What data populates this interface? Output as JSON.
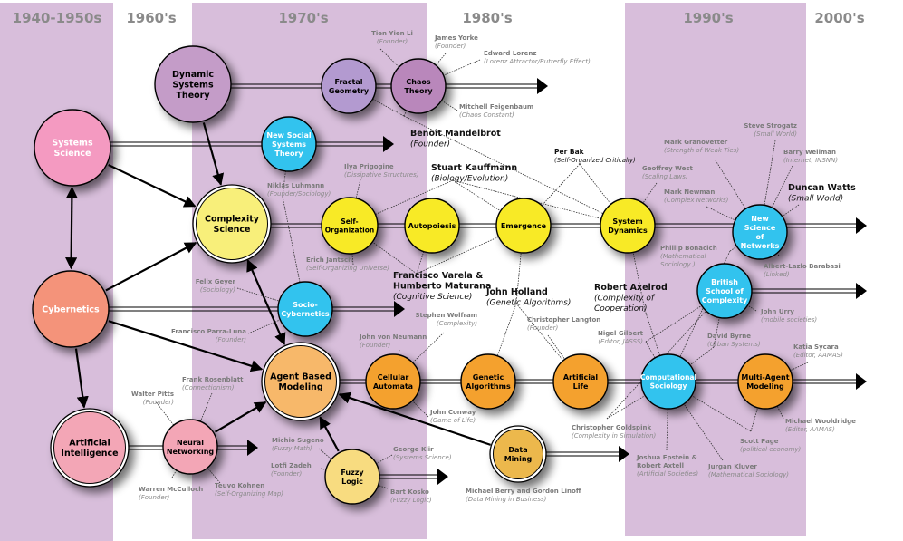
{
  "colors": {
    "band": "#d8bedb",
    "pink": "#f49ac1",
    "salmon": "#f4937a",
    "ai_pink": "#f3a6b6",
    "purple": "#c49cc8",
    "lavender": "#b39ad0",
    "chaos_purple": "#b987bb",
    "cyan": "#33c3ee",
    "light_yellow": "#f8ef7a",
    "yellow": "#f8ea26",
    "light_orange": "#f7b86a",
    "orange": "#f4a12e",
    "fuzzy_yellow": "#f8dc80",
    "gold": "#ecb84c"
  },
  "eras": [
    {
      "id": "e1",
      "label": "1940-1950s",
      "shaded": true
    },
    {
      "id": "e2",
      "label": "1960's",
      "shaded": false
    },
    {
      "id": "e3",
      "label": "1970's",
      "shaded": true
    },
    {
      "id": "e4",
      "label": "1980's",
      "shaded": false
    },
    {
      "id": "e5",
      "label": "1990's",
      "shaded": true
    },
    {
      "id": "e6",
      "label": "2000's",
      "shaded": false
    }
  ],
  "nodes": [
    {
      "id": "systems",
      "lines": [
        "Systems",
        "Science"
      ],
      "color": "pink",
      "text": "#fff"
    },
    {
      "id": "cyber",
      "lines": [
        "Cybernetics"
      ],
      "color": "salmon",
      "text": "#fff"
    },
    {
      "id": "ai",
      "lines": [
        "Artificial",
        "Intelligence"
      ],
      "color": "ai_pink",
      "text": "#000"
    },
    {
      "id": "dyn",
      "lines": [
        "Dynamic",
        "Systems",
        "Theory"
      ],
      "color": "purple",
      "text": "#000"
    },
    {
      "id": "fractal",
      "lines": [
        "Fractal",
        "Geometry"
      ],
      "color": "lavender",
      "text": "#000"
    },
    {
      "id": "chaos",
      "lines": [
        "Chaos",
        "Theory"
      ],
      "color": "chaos_purple",
      "text": "#000"
    },
    {
      "id": "nsst",
      "lines": [
        "New Social",
        "Systems",
        "Theory"
      ],
      "color": "cyan",
      "text": "#fff"
    },
    {
      "id": "complex",
      "lines": [
        "Complexity",
        "Science"
      ],
      "color": "light_yellow",
      "text": "#000"
    },
    {
      "id": "selforg",
      "lines": [
        "Self-",
        "Organization"
      ],
      "color": "yellow",
      "text": "#000"
    },
    {
      "id": "autop",
      "lines": [
        "Autopoiesis"
      ],
      "color": "yellow",
      "text": "#000"
    },
    {
      "id": "emerg",
      "lines": [
        "Emergence"
      ],
      "color": "yellow",
      "text": "#000"
    },
    {
      "id": "sysdyn",
      "lines": [
        "System",
        "Dynamics"
      ],
      "color": "yellow",
      "text": "#000"
    },
    {
      "id": "networks",
      "lines": [
        "New",
        "Science",
        "of",
        "Networks"
      ],
      "color": "cyan",
      "text": "#fff"
    },
    {
      "id": "sociocyb",
      "lines": [
        "Socio-",
        "Cybernetics"
      ],
      "color": "cyan",
      "text": "#fff"
    },
    {
      "id": "british",
      "lines": [
        "British",
        "School of",
        "Complexity"
      ],
      "color": "cyan",
      "text": "#fff"
    },
    {
      "id": "abm",
      "lines": [
        "Agent Based",
        "Modeling"
      ],
      "color": "light_orange",
      "text": "#000"
    },
    {
      "id": "ca",
      "lines": [
        "Cellular",
        "Automata"
      ],
      "color": "orange",
      "text": "#000"
    },
    {
      "id": "ga",
      "lines": [
        "Genetic",
        "Algorithms"
      ],
      "color": "orange",
      "text": "#000"
    },
    {
      "id": "alife",
      "lines": [
        "Artificial",
        "Life"
      ],
      "color": "orange",
      "text": "#000"
    },
    {
      "id": "compsoc",
      "lines": [
        "Computational",
        "Sociology"
      ],
      "color": "cyan",
      "text": "#fff"
    },
    {
      "id": "mam",
      "lines": [
        "Multi-Agent",
        "Modeling"
      ],
      "color": "orange",
      "text": "#000"
    },
    {
      "id": "neural",
      "lines": [
        "Neural",
        "Networking"
      ],
      "color": "ai_pink",
      "text": "#000"
    },
    {
      "id": "fuzzy",
      "lines": [
        "Fuzzy",
        "Logic"
      ],
      "color": "fuzzy_yellow",
      "text": "#000"
    },
    {
      "id": "datamining",
      "lines": [
        "Data",
        "Mining"
      ],
      "color": "gold",
      "text": "#000"
    }
  ],
  "influences": [
    {
      "from": "dyn",
      "to": "complex"
    },
    {
      "from": "systems",
      "to": "complex"
    },
    {
      "from": "cyber",
      "to": "complex"
    },
    {
      "from": "systems",
      "to": "cyber",
      "both": true
    },
    {
      "from": "cyber",
      "to": "ai"
    },
    {
      "from": "cyber",
      "to": "abm"
    },
    {
      "from": "complex",
      "to": "abm",
      "both": true
    },
    {
      "from": "neural",
      "to": "abm"
    },
    {
      "from": "fuzzy",
      "to": "abm"
    },
    {
      "from": "datamining",
      "to": "abm"
    }
  ],
  "people": [
    {
      "id": "p1",
      "name": "Tien Yien Li",
      "note": "(Founder)",
      "links": [
        "chaos"
      ]
    },
    {
      "id": "p2",
      "name": "James Yorke",
      "note": "(Founder)",
      "links": [
        "chaos"
      ]
    },
    {
      "id": "p3",
      "name": "Edward Lorenz",
      "note": "(Lorenz Attractor/Butterfly Effect)",
      "links": [
        "chaos"
      ]
    },
    {
      "id": "p4",
      "name": "Mitchell Feigenbaum",
      "note": "(Chaos Constant)",
      "links": [
        "chaos"
      ]
    },
    {
      "id": "p5",
      "name": "Benoit Mandelbrot",
      "note": "(Founder)",
      "major": true,
      "links": [
        "fractal",
        "chaos",
        "sysdyn"
      ]
    },
    {
      "id": "p6",
      "name": "Stuart Kauffmann",
      "note": "(Biology/Evolution)",
      "major": true,
      "links": [
        "selforg",
        "emerg",
        "sysdyn"
      ]
    },
    {
      "id": "p7",
      "name": "Per Bak",
      "note": "(Self-Organized Critically)",
      "dark": true,
      "links": [
        "emerg",
        "sysdyn"
      ]
    },
    {
      "id": "p8",
      "name": "Ilya Prigogine",
      "note": "(Dissipative Structures)",
      "links": [
        "selforg"
      ]
    },
    {
      "id": "p9",
      "name": "Niklas Luhmann",
      "note": "(Founder/Sociology)",
      "links": [
        "nsst",
        "sociocyb"
      ]
    },
    {
      "id": "p10",
      "name": "Erich Jantsch",
      "note": "(Self-Organizing Universe)",
      "links": [
        "selforg"
      ]
    },
    {
      "id": "p11",
      "name": "Francisco Varela &",
      "name2": "Humberto Maturana",
      "note": "(Cognitive Science)",
      "major": true,
      "links": [
        "selforg",
        "autop",
        "emerg"
      ]
    },
    {
      "id": "p12",
      "name": "John Holland",
      "note": "(Genetic Algorithms)",
      "major": true,
      "links": [
        "emerg",
        "ga",
        "alife"
      ]
    },
    {
      "id": "p13",
      "name": "Felix Geyer",
      "note": "(Sociology)",
      "links": [
        "sociocyb"
      ]
    },
    {
      "id": "p14",
      "name": "Francisco Parra-Luna",
      "note": "(Founder)",
      "links": [
        "sociocyb"
      ]
    },
    {
      "id": "p15",
      "name": "Stephen Wolfram",
      "note": "(Complexity)",
      "links": [
        "ca"
      ]
    },
    {
      "id": "p16",
      "name": "Christopher Langton",
      "note": "(Founder)",
      "links": [
        "alife"
      ]
    },
    {
      "id": "p17",
      "name": "Robert Axelrod",
      "note": "(Complexity of",
      "note2": "Cooperation)",
      "major": true,
      "links": [
        "sysdyn",
        "compsoc"
      ]
    },
    {
      "id": "p18",
      "name": "Geoffrey West",
      "note": "(Scaling Laws)",
      "links": [
        "sysdyn"
      ]
    },
    {
      "id": "p19",
      "name": "Mark Granovetter",
      "note": "(Strength of Weak Ties)",
      "links": [
        "networks"
      ]
    },
    {
      "id": "p20",
      "name": "Steve Strogatz",
      "note": "(Small World)",
      "links": [
        "networks"
      ]
    },
    {
      "id": "p21",
      "name": "Barry Wellman",
      "note": "(Internet, INSNN)",
      "links": [
        "networks"
      ]
    },
    {
      "id": "p22",
      "name": "Duncan Watts",
      "note": "(Small World)",
      "major": true,
      "links": [
        "networks"
      ]
    },
    {
      "id": "p23",
      "name": "Mark Newman",
      "note": "(Complex Networks)",
      "links": [
        "networks"
      ]
    },
    {
      "id": "p24",
      "name": "Phillip Bonacich",
      "note": "(Mathematical",
      "note2": "Sociology )",
      "links": [
        "networks",
        "compsoc"
      ]
    },
    {
      "id": "p25",
      "name": "Albert-Lazlo Barabasi",
      "note": "(Linked)",
      "links": [
        "networks"
      ]
    },
    {
      "id": "p26",
      "name": "John Urry",
      "note": "(mobile societies)",
      "links": [
        "british"
      ]
    },
    {
      "id": "p27",
      "name": "Nigel Gilbert",
      "note": "(Editor, JASSS)",
      "links": [
        "compsoc",
        "british"
      ]
    },
    {
      "id": "p28",
      "name": "David Byrne",
      "note": "(Urban Systems)",
      "links": [
        "compsoc",
        "british"
      ]
    },
    {
      "id": "p29",
      "name": "Katia Sycara",
      "note": "(Editor, AAMAS)",
      "links": [
        "mam"
      ]
    },
    {
      "id": "p30",
      "name": "Christopher Goldspink",
      "note": "(Complexity in Simulation)",
      "links": [
        "compsoc",
        "british"
      ]
    },
    {
      "id": "p31",
      "name": "Michael Wooldridge",
      "note": "(Editor, AAMAS)",
      "links": [
        "mam"
      ]
    },
    {
      "id": "p32",
      "name": "Scott Page",
      "note": "(political economy)",
      "links": [
        "compsoc",
        "mam"
      ]
    },
    {
      "id": "p33",
      "name": "Joshua Epstein &",
      "name2": "Robert Axtell",
      "note": "(Artificial Societies)",
      "links": [
        "compsoc"
      ]
    },
    {
      "id": "p34",
      "name": "Jurgan Kluver",
      "note": "(Mathematical Sociology)",
      "links": [
        "compsoc"
      ]
    },
    {
      "id": "p35",
      "name": "John von Neumann",
      "note": "(Founder)",
      "links": [
        "ca"
      ]
    },
    {
      "id": "p36",
      "name": "John Conway",
      "note": "(Game of Life)",
      "links": [
        "ca"
      ]
    },
    {
      "id": "p37",
      "name": "Frank Rosenblatt",
      "note": "(Connectionism)",
      "links": [
        "neural"
      ]
    },
    {
      "id": "p38",
      "name": "Walter Pitts",
      "note": "(Founder)",
      "links": [
        "neural"
      ]
    },
    {
      "id": "p39",
      "name": "Warren McCulloch",
      "note": "(Founder)",
      "links": [
        "neural"
      ]
    },
    {
      "id": "p40",
      "name": "Teuvo Kohnen",
      "note": "(Self-Organizing  Map)",
      "links": [
        "neural"
      ]
    },
    {
      "id": "p41",
      "name": "Michio Sugeno",
      "note": "(Fuzzy Math)",
      "links": [
        "fuzzy"
      ]
    },
    {
      "id": "p42",
      "name": "Lotfi Zadeh",
      "note": "(Founder)",
      "links": [
        "fuzzy"
      ]
    },
    {
      "id": "p43",
      "name": "George Klir",
      "note": "(Systems Science)",
      "links": [
        "fuzzy"
      ]
    },
    {
      "id": "p44",
      "name": "Bart Kosko",
      "note": "(Fuzzy Logic)",
      "links": [
        "fuzzy"
      ]
    },
    {
      "id": "p45",
      "name": "Michael Berry and Gordon Linoff",
      "note": "(Data Mining in Business)",
      "links": [
        "datamining"
      ]
    }
  ]
}
